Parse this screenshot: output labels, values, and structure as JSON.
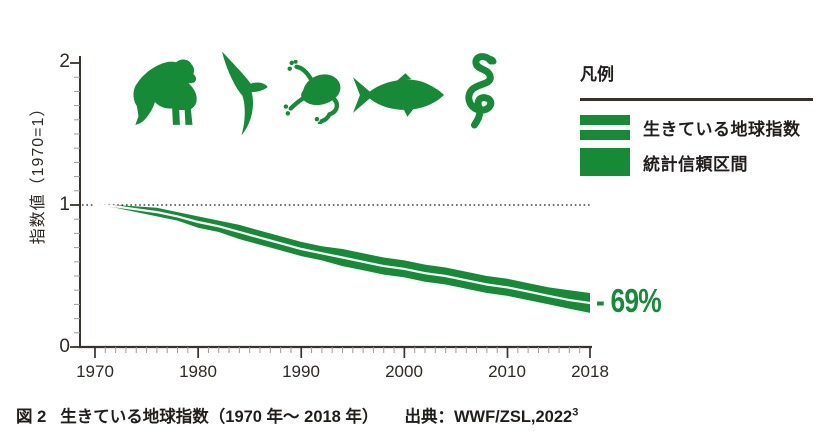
{
  "colors": {
    "green": "#178a38",
    "axis": "#3a322e",
    "minor_tick": "#9b9b9b",
    "dotted": "#1c1c1c",
    "text": "#221d1d"
  },
  "legend": {
    "title": "凡例",
    "items": [
      {
        "label": "生きている地球指数",
        "swatch": "band-with-white-line"
      },
      {
        "label": "統計信頼区間",
        "swatch": "solid-band"
      }
    ]
  },
  "annotation": {
    "decline_label": "- 69%"
  },
  "caption": {
    "fig_label": "図 2",
    "title": "生きている地球指数（1970 年〜 2018 年）",
    "source": "出典：WWF/ZSL,2022",
    "footnote_marker": "3"
  },
  "animal_icons": [
    "gorilla",
    "seabird",
    "frog",
    "fish",
    "snake"
  ],
  "chart_data": {
    "type": "area",
    "title": "生きている地球指数（1970年〜2018年）",
    "xlabel": "",
    "ylabel": "指数値（1970=1）",
    "xlim": [
      1970,
      2018
    ],
    "ylim": [
      0,
      2
    ],
    "xticks": [
      "1970",
      "1980",
      "1990",
      "2000",
      "2010",
      "2018"
    ],
    "yticks": [
      "0",
      "1",
      "2"
    ],
    "grid": false,
    "legend_position": "right",
    "reference_line_y": 1,
    "end_annotation": "- 69%",
    "x": [
      1970,
      1972,
      1974,
      1976,
      1978,
      1980,
      1982,
      1984,
      1986,
      1988,
      1990,
      1992,
      1994,
      1996,
      1998,
      2000,
      2002,
      2004,
      2006,
      2008,
      2010,
      2012,
      2014,
      2016,
      2018
    ],
    "series": [
      {
        "name": "生きている地球指数",
        "values": [
          1.0,
          0.99,
          0.97,
          0.95,
          0.92,
          0.88,
          0.85,
          0.81,
          0.77,
          0.73,
          0.69,
          0.66,
          0.63,
          0.6,
          0.57,
          0.55,
          0.52,
          0.5,
          0.47,
          0.44,
          0.42,
          0.39,
          0.36,
          0.33,
          0.31
        ]
      },
      {
        "name": "統計信頼区間（上限）",
        "values": [
          1.0,
          1.0,
          0.99,
          0.98,
          0.95,
          0.92,
          0.89,
          0.86,
          0.82,
          0.78,
          0.74,
          0.71,
          0.69,
          0.66,
          0.63,
          0.61,
          0.58,
          0.56,
          0.53,
          0.5,
          0.48,
          0.45,
          0.42,
          0.4,
          0.38
        ]
      },
      {
        "name": "統計信頼区間（下限）",
        "values": [
          1.0,
          0.98,
          0.95,
          0.92,
          0.89,
          0.84,
          0.81,
          0.76,
          0.72,
          0.68,
          0.64,
          0.61,
          0.57,
          0.54,
          0.51,
          0.49,
          0.46,
          0.44,
          0.41,
          0.38,
          0.36,
          0.33,
          0.3,
          0.27,
          0.24
        ]
      }
    ]
  }
}
